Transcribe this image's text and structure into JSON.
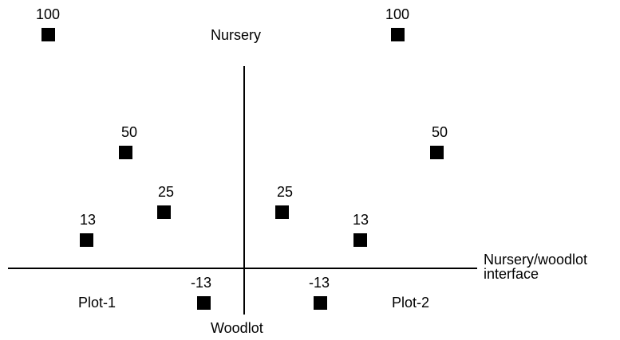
{
  "labels": {
    "top": "Nursery",
    "bottom": "Woodlot",
    "interface_line1": "Nursery/woodlot",
    "interface_line2": "interface",
    "plot_left": "Plot-1",
    "plot_right": "Plot-2"
  },
  "points": {
    "plot1": [
      "100",
      "50",
      "25",
      "13",
      "-13"
    ],
    "plot2": [
      "100",
      "50",
      "25",
      "13",
      "-13"
    ]
  },
  "colors": {
    "marker": "#000000",
    "axis": "#000000"
  }
}
